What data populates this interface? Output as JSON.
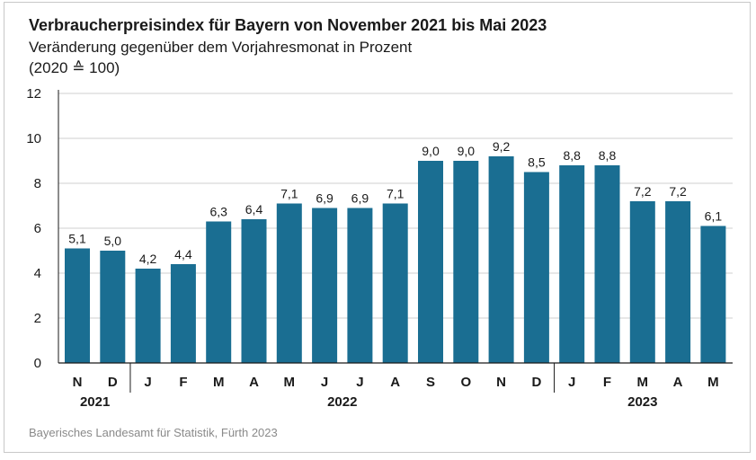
{
  "title": "Verbraucherpreisindex für Bayern von November 2021 bis Mai 2023",
  "subtitle": "Veränderung gegenüber dem Vorjahresmonat in Prozent",
  "subtitle2": "(2020 ≙ 100)",
  "source": "Bayerisches Landesamt für Statistik, Fürth 2023",
  "colors": {
    "bar": "#1a6e92",
    "grid": "#cfcfcf",
    "axis": "#1a1a1a"
  },
  "chart_data": {
    "type": "bar",
    "title": "Verbraucherpreisindex für Bayern von November 2021 bis Mai 2023",
    "subtitle": "Veränderung gegenüber dem Vorjahresmonat in Prozent",
    "categories": [
      "N",
      "D",
      "J",
      "F",
      "M",
      "A",
      "M",
      "J",
      "J",
      "A",
      "S",
      "O",
      "N",
      "D",
      "J",
      "F",
      "M",
      "A",
      "M"
    ],
    "values": [
      5.1,
      5.0,
      4.2,
      4.4,
      6.3,
      6.4,
      7.1,
      6.9,
      6.9,
      7.1,
      9.0,
      9.0,
      9.2,
      8.5,
      8.8,
      8.8,
      7.2,
      7.2,
      6.1
    ],
    "value_labels": [
      "5,1",
      "5,0",
      "4,2",
      "4,4",
      "6,3",
      "6,4",
      "7,1",
      "6,9",
      "6,9",
      "7,1",
      "9,0",
      "9,0",
      "9,2",
      "8,5",
      "8,8",
      "8,8",
      "7,2",
      "7,2",
      "6,1"
    ],
    "year_groups": [
      {
        "label": "2021",
        "start": 0,
        "end": 1
      },
      {
        "label": "2022",
        "start": 2,
        "end": 13
      },
      {
        "label": "2023",
        "start": 14,
        "end": 18
      }
    ],
    "yticks": [
      "0",
      "2",
      "4",
      "6",
      "8",
      "10",
      "12"
    ],
    "ylim": [
      0,
      12
    ],
    "grid": true
  }
}
